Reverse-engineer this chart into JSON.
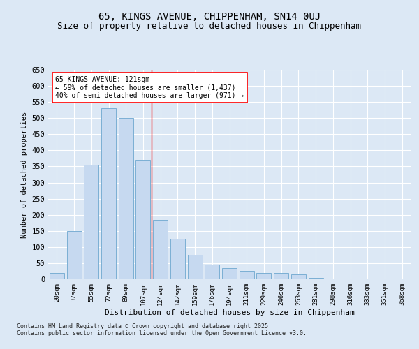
{
  "title1": "65, KINGS AVENUE, CHIPPENHAM, SN14 0UJ",
  "title2": "Size of property relative to detached houses in Chippenham",
  "xlabel": "Distribution of detached houses by size in Chippenham",
  "ylabel": "Number of detached properties",
  "categories": [
    "20sqm",
    "37sqm",
    "55sqm",
    "72sqm",
    "89sqm",
    "107sqm",
    "124sqm",
    "142sqm",
    "159sqm",
    "176sqm",
    "194sqm",
    "211sqm",
    "229sqm",
    "246sqm",
    "263sqm",
    "281sqm",
    "298sqm",
    "316sqm",
    "333sqm",
    "351sqm",
    "368sqm"
  ],
  "values": [
    20,
    150,
    355,
    530,
    500,
    370,
    185,
    125,
    75,
    45,
    35,
    25,
    20,
    20,
    15,
    5,
    0,
    0,
    0,
    0,
    0
  ],
  "bar_color": "#c6d9f0",
  "bar_edge_color": "#7bafd4",
  "vline_x_index": 5.5,
  "annotation_text_line1": "65 KINGS AVENUE: 121sqm",
  "annotation_text_line2": "← 59% of detached houses are smaller (1,437)",
  "annotation_text_line3": "40% of semi-detached houses are larger (971) →",
  "annotation_box_color": "white",
  "annotation_box_edge": "red",
  "vline_color": "red",
  "footer": "Contains HM Land Registry data © Crown copyright and database right 2025.\nContains public sector information licensed under the Open Government Licence v3.0.",
  "ylim": [
    0,
    650
  ],
  "background_color": "#dce8f5",
  "plot_bg_color": "#dce8f5",
  "grid_color": "white",
  "title1_fontsize": 10,
  "title2_fontsize": 9
}
